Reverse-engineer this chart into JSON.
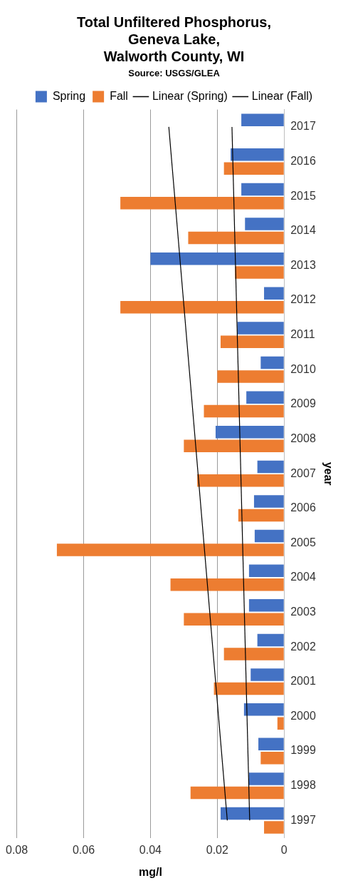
{
  "chart_data": {
    "type": "bar",
    "orientation": "horizontal",
    "title": "Total Unfiltered Phosphorus,\nGeneva Lake,\nWalworth County, WI",
    "subtitle": "Source: USGS/GLEA",
    "xlabel": "mg/l",
    "ylabel": "year",
    "categories": [
      "2017",
      "2016",
      "2015",
      "2014",
      "2013",
      "2012",
      "2011",
      "2010",
      "2009",
      "2008",
      "2007",
      "2006",
      "2005",
      "2004",
      "2003",
      "2002",
      "2001",
      "2000",
      "1999",
      "1998",
      "1997"
    ],
    "series": [
      {
        "name": "Spring",
        "color": "#4472c4",
        "values": [
          0.0128,
          0.016,
          0.0128,
          0.0117,
          0.04,
          0.006,
          0.014,
          0.007,
          0.0113,
          0.0205,
          0.008,
          0.009,
          0.0088,
          0.0105,
          0.0105,
          0.008,
          0.01,
          0.012,
          0.0077,
          0.0105,
          0.019
        ]
      },
      {
        "name": "Fall",
        "color": "#ed7d31",
        "values": [
          null,
          0.018,
          0.049,
          0.0287,
          0.0147,
          0.049,
          0.019,
          0.02,
          0.024,
          0.03,
          0.026,
          0.0137,
          0.068,
          0.034,
          0.03,
          0.018,
          0.021,
          0.002,
          0.007,
          0.028,
          0.006
        ]
      },
      {
        "name": "Linear (Spring)",
        "type": "line",
        "color": "#000000",
        "values": [
          0.0156,
          null,
          null,
          null,
          null,
          null,
          null,
          null,
          null,
          null,
          null,
          null,
          null,
          null,
          null,
          null,
          null,
          null,
          null,
          null,
          0.0103
        ]
      },
      {
        "name": "Linear (Fall)",
        "type": "line",
        "color": "#000000",
        "values": [
          0.0345,
          null,
          null,
          null,
          null,
          null,
          null,
          null,
          null,
          null,
          null,
          null,
          null,
          null,
          null,
          null,
          null,
          null,
          null,
          null,
          0.017
        ]
      }
    ],
    "xlim": [
      0.08,
      0
    ],
    "xticks": [
      0.08,
      0.06,
      0.04,
      0.02,
      0
    ],
    "grid": "x",
    "legend": "top",
    "marker": "none",
    "line_style": "solid"
  }
}
